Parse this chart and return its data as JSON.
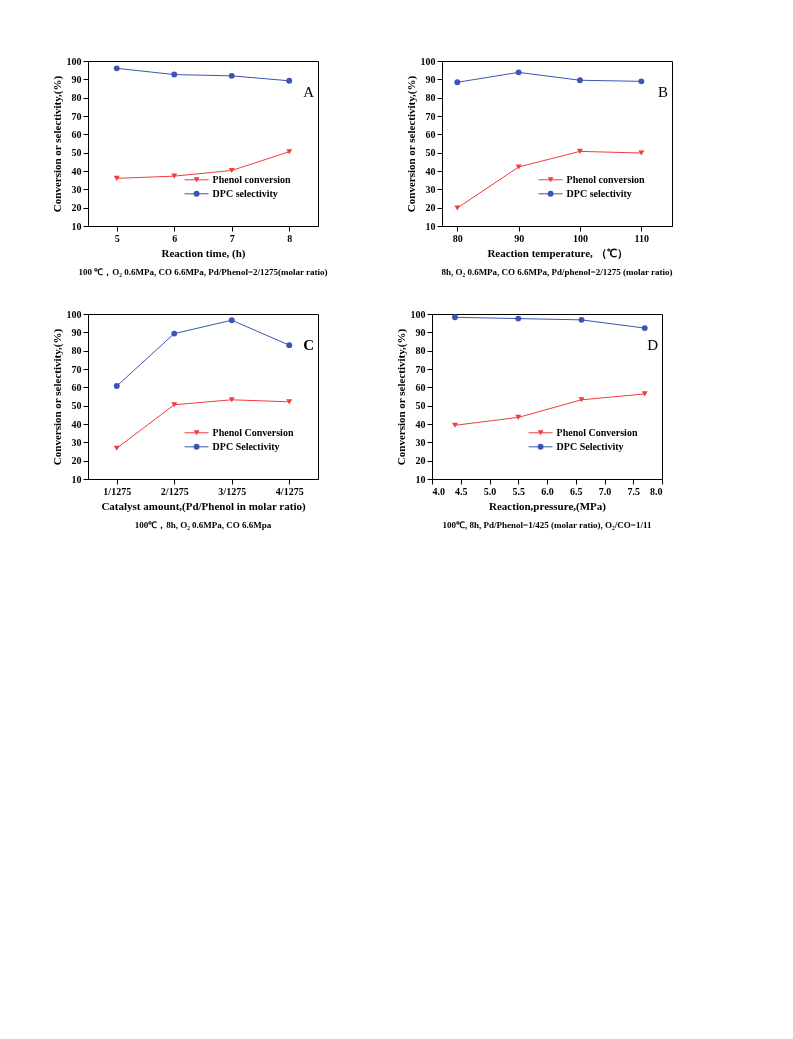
{
  "chart_data": [
    {
      "type": "line",
      "xlabel": "Reaction time, (h)",
      "ylabel": "Conversion or selectivity,(%)",
      "x": [
        5,
        6,
        7,
        8
      ],
      "xlim": [
        4.5,
        8.5
      ],
      "xticks": [
        5,
        6,
        7,
        8
      ],
      "ylim": [
        10,
        100
      ],
      "yticks": [
        10,
        20,
        30,
        40,
        50,
        60,
        70,
        80,
        90,
        100
      ],
      "legend": "bottom right",
      "grid": false,
      "annotations": [
        "A",
        "100 ℃，O₂ 0.6MPa, CO 6.6MPa, Pd/Phenol=2/1275(molar ratio)"
      ],
      "series": [
        {
          "name": "Phenol conversion",
          "color": "#f03c3c",
          "marker": "triangle",
          "values": [
            36.0,
            37.2,
            40.3,
            50.5
          ]
        },
        {
          "name": "DPC selectivity",
          "color": "#3c55b4",
          "marker": "circle",
          "values": [
            96.0,
            92.6,
            91.9,
            89.2
          ]
        }
      ]
    },
    {
      "type": "line",
      "xlabel": "Reaction temperature, （℃）",
      "ylabel": "Conversion or selectivity,(%)",
      "x": [
        80,
        90,
        100,
        110
      ],
      "xlim": [
        77.5,
        115
      ],
      "xticks": [
        80,
        90,
        100,
        110
      ],
      "ylim": [
        10,
        100
      ],
      "yticks": [
        10,
        20,
        30,
        40,
        50,
        60,
        70,
        80,
        90,
        100
      ],
      "legend": "bottom right",
      "grid": false,
      "annotations": [
        "B",
        "8h, O₂ 0.6MPa, CO 6.6MPa, Pd/phenol=2/1275 (molar ratio)"
      ],
      "series": [
        {
          "name": "Phenol conversion",
          "color": "#f03c3c",
          "marker": "triangle",
          "values": [
            19.8,
            42.2,
            50.7,
            49.8
          ]
        },
        {
          "name": "DPC selectivity",
          "color": "#3c55b4",
          "marker": "circle",
          "values": [
            88.4,
            93.8,
            89.5,
            88.9
          ]
        }
      ]
    },
    {
      "type": "line",
      "xlabel": "Catalyst amount,(Pd/Phenol in molar ratio)",
      "ylabel": "Conversion or selectivity,(%)",
      "categories": [
        "1/1275",
        "2/1275",
        "3/1275",
        "4/1275"
      ],
      "ylim": [
        10,
        100
      ],
      "yticks": [
        10,
        20,
        30,
        40,
        50,
        60,
        70,
        80,
        90,
        100
      ],
      "legend": "bottom right",
      "grid": false,
      "annotations": [
        "C",
        "100℃，8h, O₂ 0.6MPa, CO 6.6Mpa"
      ],
      "series": [
        {
          "name": "Phenol Conversion",
          "color": "#f03c3c",
          "marker": "triangle",
          "values": [
            26.8,
            50.5,
            53.2,
            52.1
          ]
        },
        {
          "name": "DPC Selectivity",
          "color": "#3c55b4",
          "marker": "circle",
          "values": [
            60.7,
            89.3,
            96.6,
            83.0
          ]
        }
      ]
    },
    {
      "type": "line",
      "xlabel": "Reaction,pressure,(MPa)",
      "ylabel": "Conversion or selectivity,(%)",
      "x": [
        4.4,
        5.5,
        6.6,
        7.7
      ],
      "xlim": [
        4,
        8
      ],
      "xticks": [
        {
          "value": 4,
          "label": "4.0"
        },
        4.5,
        {
          "value": 5,
          "label": "5.0"
        },
        5.5,
        {
          "value": 6,
          "label": "6.0"
        },
        6.5,
        {
          "value": 7,
          "label": "7.0"
        },
        7.5,
        {
          "value": 8,
          "label": "8.0"
        }
      ],
      "ylim": [
        10,
        100
      ],
      "yticks": [
        10,
        20,
        30,
        40,
        50,
        60,
        70,
        80,
        90,
        100
      ],
      "legend": "bottom right",
      "grid": false,
      "annotations": [
        "D",
        "100℃, 8h, Pd/Phenol=1/425 (molar ratio), O₂/CO=1/11"
      ],
      "series": [
        {
          "name": "Phenol Conversion",
          "color": "#f03c3c",
          "marker": "triangle",
          "values": [
            39.3,
            43.6,
            53.2,
            56.4
          ]
        },
        {
          "name": "DPC Selectivity",
          "color": "#3c55b4",
          "marker": "circle",
          "values": [
            98.2,
            97.5,
            96.8,
            92.3
          ]
        }
      ]
    }
  ]
}
